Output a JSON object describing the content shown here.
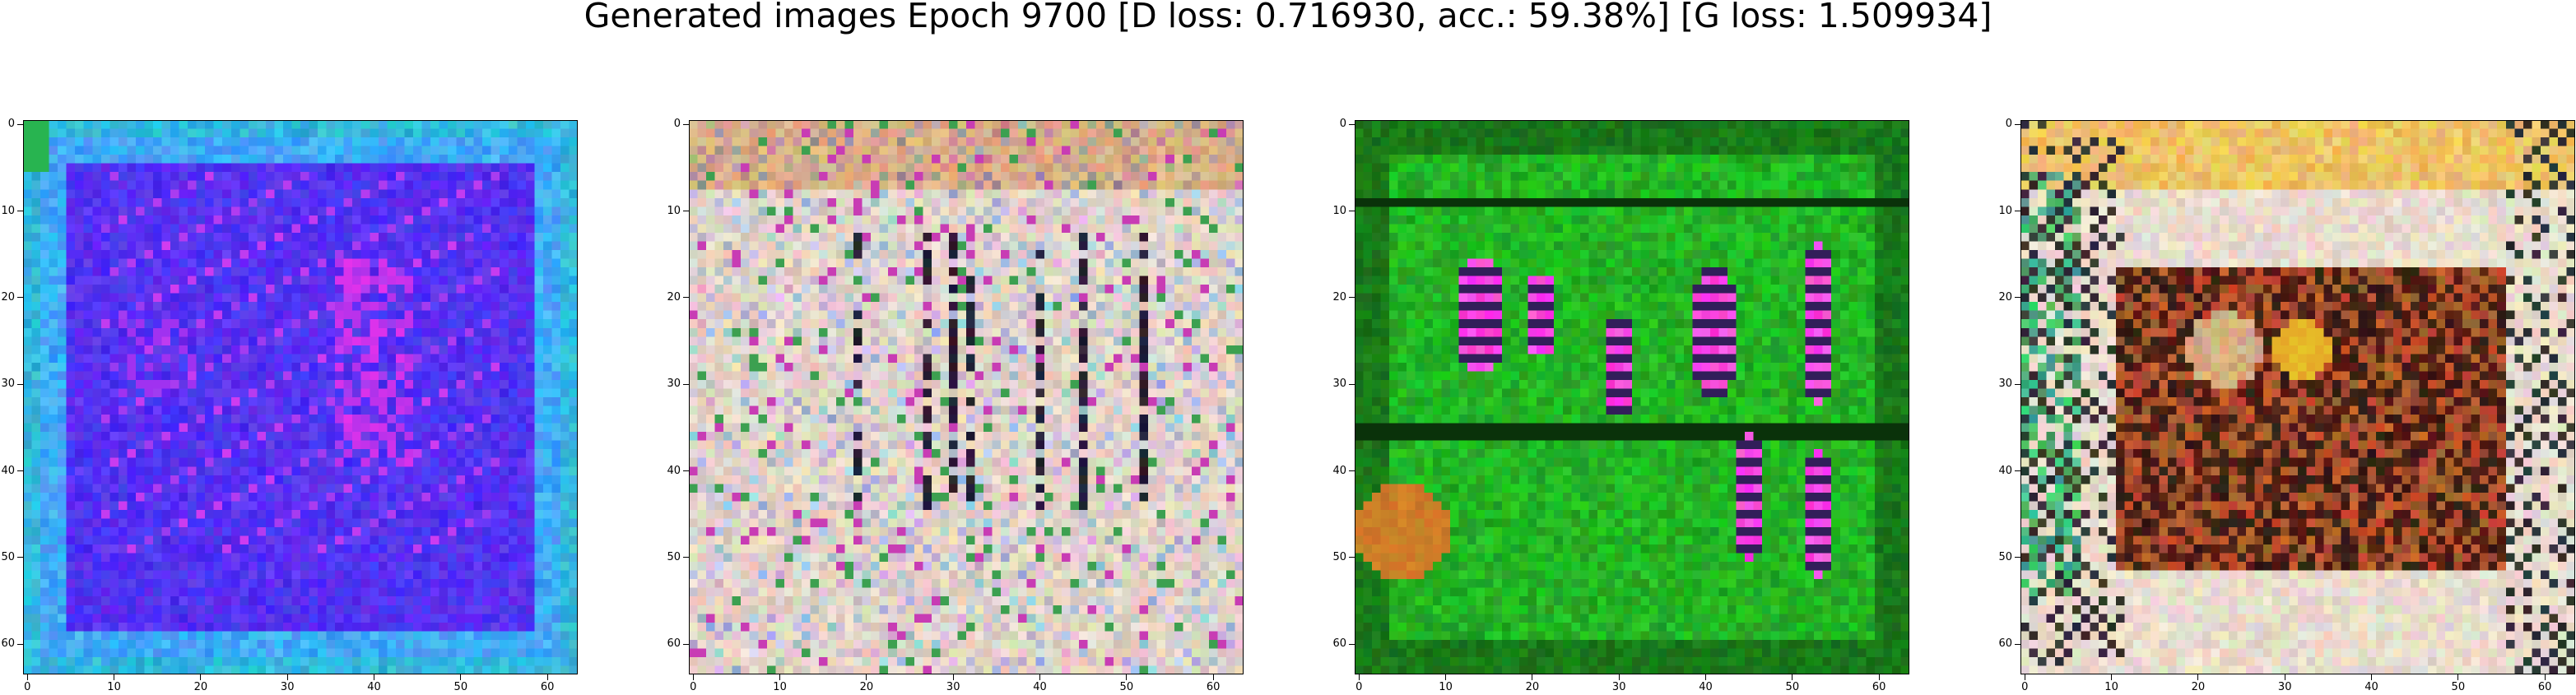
{
  "title": "Generated images Epoch 9700 [D loss: 0.716930, acc.: 59.38%] [G loss: 1.509934]",
  "chart_data": [
    {
      "type": "image",
      "description_palette": {
        "base": "#3a14f0",
        "edge": "#38b6ea",
        "accent": "#a020f0"
      },
      "xlim": [
        0,
        63
      ],
      "ylim": [
        63,
        0
      ],
      "xticks": [
        "0",
        "10",
        "20",
        "30",
        "40",
        "50",
        "60"
      ],
      "yticks": [
        "0",
        "10",
        "20",
        "30",
        "40",
        "50",
        "60"
      ]
    },
    {
      "type": "image",
      "description_palette": {
        "base": "#ddd0c2",
        "edge": "#c8a070",
        "accent": "#111111"
      },
      "xlim": [
        0,
        63
      ],
      "ylim": [
        63,
        0
      ],
      "xticks": [
        "0",
        "10",
        "20",
        "30",
        "40",
        "50",
        "60"
      ],
      "yticks": [
        "0",
        "10",
        "20",
        "30",
        "40",
        "50",
        "60"
      ]
    },
    {
      "type": "image",
      "description_palette": {
        "base": "#1aa81a",
        "edge": "#0d6a0d",
        "accent": "#ff28c8"
      },
      "xlim": [
        0,
        63
      ],
      "ylim": [
        63,
        0
      ],
      "xticks": [
        "0",
        "10",
        "20",
        "30",
        "40",
        "50",
        "60"
      ],
      "yticks": [
        "0",
        "10",
        "20",
        "30",
        "40",
        "50",
        "60"
      ]
    },
    {
      "type": "image",
      "description_palette": {
        "base": "#d8c8b8",
        "edge": "#e8b040",
        "accent": "#3a1a08"
      },
      "xlim": [
        0,
        63
      ],
      "ylim": [
        63,
        0
      ],
      "xticks": [
        "0",
        "10",
        "20",
        "30",
        "40",
        "50",
        "60"
      ],
      "yticks": [
        "0",
        "10",
        "20",
        "30",
        "40",
        "50",
        "60"
      ]
    }
  ]
}
